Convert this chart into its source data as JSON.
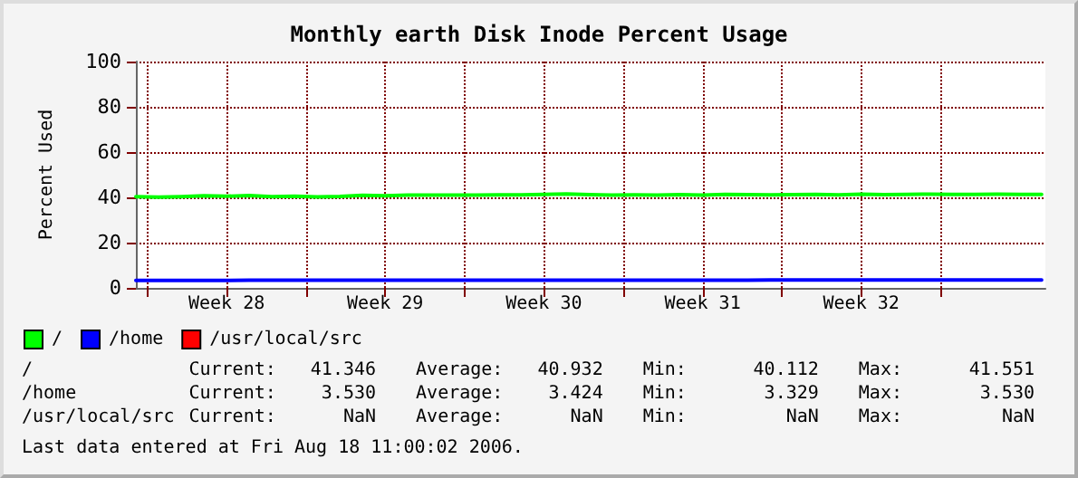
{
  "chart_data": {
    "type": "line",
    "title": "Monthly earth Disk Inode Percent Usage",
    "ylabel": "Percent Used",
    "x": [
      "2006-07-09T12:00",
      "2006-07-10T12:00",
      "2006-07-11T12:00",
      "2006-07-12T12:00",
      "2006-07-13T12:00",
      "2006-07-14T12:00",
      "2006-07-15T12:00",
      "2006-07-16T12:00",
      "2006-07-17T12:00",
      "2006-07-18T12:00",
      "2006-07-19T12:00",
      "2006-07-20T12:00",
      "2006-07-21T12:00",
      "2006-07-22T12:00",
      "2006-07-23T12:00",
      "2006-07-24T12:00",
      "2006-07-25T12:00",
      "2006-07-26T12:00",
      "2006-07-27T12:00",
      "2006-07-28T12:00",
      "2006-07-29T12:00",
      "2006-07-30T12:00",
      "2006-07-31T12:00",
      "2006-08-01T12:00",
      "2006-08-02T12:00",
      "2006-08-03T12:00",
      "2006-08-04T12:00",
      "2006-08-05T12:00",
      "2006-08-06T12:00",
      "2006-08-07T12:00",
      "2006-08-08T12:00",
      "2006-08-09T12:00",
      "2006-08-10T12:00",
      "2006-08-11T12:00",
      "2006-08-12T12:00",
      "2006-08-13T12:00",
      "2006-08-14T12:00",
      "2006-08-15T12:00",
      "2006-08-16T12:00",
      "2006-08-17T12:00",
      "2006-08-18T11:00"
    ],
    "series": [
      {
        "name": "/",
        "color": "#00ff00",
        "values": [
          40.3,
          40.1,
          40.3,
          40.7,
          40.5,
          40.8,
          40.3,
          40.5,
          40.2,
          40.4,
          40.9,
          40.7,
          41.0,
          41.0,
          41.0,
          41.0,
          41.1,
          41.1,
          41.3,
          41.5,
          41.2,
          41.0,
          41.1,
          41.0,
          41.2,
          41.0,
          41.3,
          41.2,
          41.1,
          41.2,
          41.3,
          41.1,
          41.4,
          41.2,
          41.3,
          41.4,
          41.3,
          41.3,
          41.4,
          41.3,
          41.3
        ]
      },
      {
        "name": "/home",
        "color": "#0000ff",
        "values": [
          3.3,
          3.3,
          3.3,
          3.3,
          3.3,
          3.4,
          3.4,
          3.4,
          3.4,
          3.4,
          3.4,
          3.4,
          3.4,
          3.4,
          3.4,
          3.4,
          3.4,
          3.4,
          3.4,
          3.4,
          3.4,
          3.4,
          3.4,
          3.4,
          3.4,
          3.4,
          3.4,
          3.4,
          3.5,
          3.5,
          3.5,
          3.5,
          3.5,
          3.5,
          3.5,
          3.5,
          3.5,
          3.5,
          3.5,
          3.5,
          3.5
        ]
      },
      {
        "name": "/usr/local/src",
        "color": "#ff0000",
        "values": [
          null,
          null,
          null,
          null,
          null,
          null,
          null,
          null,
          null,
          null,
          null,
          null,
          null,
          null,
          null,
          null,
          null,
          null,
          null,
          null,
          null,
          null,
          null,
          null,
          null,
          null,
          null,
          null,
          null,
          null,
          null,
          null,
          null,
          null,
          null,
          null,
          null,
          null,
          null,
          null,
          null
        ]
      }
    ],
    "xlim": [
      "2006-07-09T12:00",
      "2006-08-18T15:00"
    ],
    "xticks": [
      {
        "value": "2006-07-10T00:00",
        "label": null
      },
      {
        "value": "2006-07-13T12:00",
        "label": "Week 28"
      },
      {
        "value": "2006-07-17T00:00",
        "label": null
      },
      {
        "value": "2006-07-20T12:00",
        "label": "Week 29"
      },
      {
        "value": "2006-07-24T00:00",
        "label": null
      },
      {
        "value": "2006-07-27T12:00",
        "label": "Week 30"
      },
      {
        "value": "2006-07-31T00:00",
        "label": null
      },
      {
        "value": "2006-08-03T12:00",
        "label": "Week 31"
      },
      {
        "value": "2006-08-07T00:00",
        "label": null
      },
      {
        "value": "2006-08-10T12:00",
        "label": "Week 32"
      },
      {
        "value": "2006-08-14T00:00",
        "label": null
      }
    ],
    "ylim": [
      0,
      100
    ],
    "yticks": [
      0,
      20,
      40,
      60,
      80,
      100
    ],
    "grid": true,
    "legend": "bottom",
    "marker": "none",
    "line_style": "solid",
    "annotations": [
      "/ Current: 41.346 Average: 40.932 Min: 40.112 Max: 41.551",
      "/home Current: 3.530 Average: 3.424 Min: 3.329 Max: 3.530",
      "/usr/local/src Current: NaN Average: NaN Min: NaN Max: NaN",
      "Last data entered at Fri Aug 18 11:00:02 2006."
    ]
  }
}
